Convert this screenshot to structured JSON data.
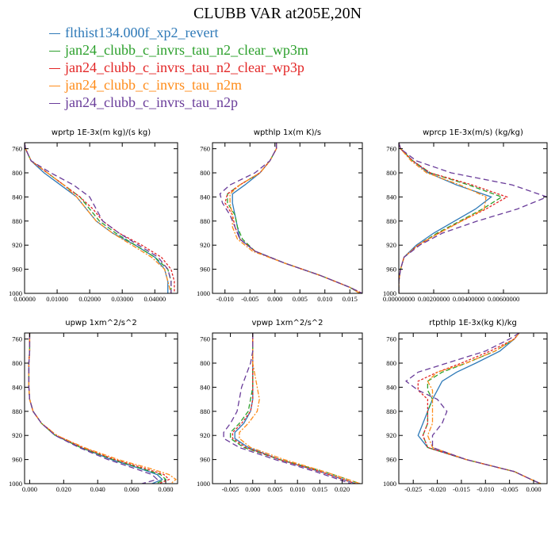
{
  "title": "CLUBB VAR at205E,20N",
  "colors": {
    "blue": "#2f7ab8",
    "green": "#2ca02c",
    "red": "#e32626",
    "orange": "#ff8c1a",
    "purple": "#6a3d9a"
  },
  "legend": [
    {
      "label": "flthist134.000f_xp2_revert",
      "color": "#2f7ab8"
    },
    {
      "label": "jan24_clubb_c_invrs_tau_n2_clear_wp3m",
      "color": "#2ca02c"
    },
    {
      "label": "jan24_clubb_c_invrs_tau_n2_clear_wp3p",
      "color": "#e32626"
    },
    {
      "label": "jan24_clubb_c_invrs_tau_n2m",
      "color": "#ff8c1a"
    },
    {
      "label": "jan24_clubb_c_invrs_tau_n2p",
      "color": "#6a3d9a"
    }
  ],
  "chart_data": [
    {
      "type": "line",
      "title": "wprtp  1E-3x(m kg)/(s kg)",
      "xlim": [
        0,
        0.047
      ],
      "ylim": [
        1000,
        750
      ],
      "xticks": [
        0,
        0.01,
        0.02,
        0.03,
        0.04
      ],
      "xtick_labels": [
        "0.00000",
        "0.01000",
        "0.02000",
        "0.03000",
        "0.04000"
      ],
      "yticks": [
        760,
        800,
        840,
        880,
        920,
        960,
        1000
      ],
      "ytick_labels": [
        "760",
        "800",
        "840",
        "880",
        "920",
        "960",
        "1000"
      ],
      "p": [
        750,
        760,
        780,
        800,
        820,
        840,
        860,
        880,
        900,
        920,
        940,
        960,
        980,
        1000
      ],
      "series": [
        {
          "values": [
            0.0,
            0.0003,
            0.002,
            0.006,
            0.011,
            0.016,
            0.019,
            0.022,
            0.027,
            0.034,
            0.04,
            0.043,
            0.044,
            0.044
          ]
        },
        {
          "values": [
            0.0,
            0.0003,
            0.002,
            0.007,
            0.012,
            0.017,
            0.02,
            0.023,
            0.028,
            0.034,
            0.04,
            0.044,
            0.045,
            0.045
          ]
        },
        {
          "values": [
            0.0,
            0.0003,
            0.002,
            0.007,
            0.012,
            0.017,
            0.021,
            0.024,
            0.029,
            0.036,
            0.042,
            0.045,
            0.046,
            0.046
          ]
        },
        {
          "values": [
            0.0,
            0.0003,
            0.002,
            0.007,
            0.012,
            0.016,
            0.019,
            0.022,
            0.027,
            0.033,
            0.039,
            0.043,
            0.044,
            0.045
          ]
        },
        {
          "values": [
            0.0,
            0.0003,
            0.002,
            0.008,
            0.015,
            0.02,
            0.022,
            0.024,
            0.029,
            0.035,
            0.041,
            0.044,
            0.045,
            0.045
          ]
        }
      ]
    },
    {
      "type": "line",
      "title": "wpthlp  1x(m K)/s",
      "xlim": [
        -0.0125,
        0.0175
      ],
      "ylim": [
        1000,
        750
      ],
      "xticks": [
        -0.01,
        -0.005,
        0,
        0.005,
        0.01,
        0.015
      ],
      "xtick_labels": [
        "-0.010",
        "-0.005",
        "0.000",
        "0.005",
        "0.010",
        "0.015"
      ],
      "yticks": [
        760,
        800,
        840,
        880,
        920,
        960,
        1000
      ],
      "ytick_labels": [
        "760",
        "800",
        "840",
        "880",
        "920",
        "960",
        "1000"
      ],
      "p": [
        750,
        760,
        780,
        800,
        820,
        835,
        850,
        870,
        890,
        910,
        930,
        950,
        970,
        990,
        1000
      ],
      "series": [
        {
          "values": [
            0.0003,
            0.0003,
            -0.001,
            -0.003,
            -0.006,
            -0.0085,
            -0.0085,
            -0.008,
            -0.0075,
            -0.007,
            -0.004,
            0.002,
            0.009,
            0.015,
            0.017
          ]
        },
        {
          "values": [
            0.0003,
            0.0003,
            -0.001,
            -0.003,
            -0.007,
            -0.0095,
            -0.0095,
            -0.008,
            -0.0075,
            -0.0065,
            -0.004,
            0.002,
            0.009,
            0.015,
            0.017
          ]
        },
        {
          "values": [
            0.0003,
            0.0003,
            -0.001,
            -0.003,
            -0.007,
            -0.0095,
            -0.01,
            -0.0085,
            -0.008,
            -0.007,
            -0.004,
            0.002,
            0.009,
            0.015,
            0.0175
          ]
        },
        {
          "values": [
            0.0003,
            0.0003,
            -0.001,
            -0.003,
            -0.007,
            -0.009,
            -0.009,
            -0.0085,
            -0.0085,
            -0.0075,
            -0.0045,
            0.002,
            0.009,
            0.015,
            0.017
          ]
        },
        {
          "values": [
            0.0003,
            0.0003,
            -0.001,
            -0.004,
            -0.009,
            -0.011,
            -0.0105,
            -0.009,
            -0.008,
            -0.007,
            -0.004,
            0.002,
            0.009,
            0.015,
            0.0175
          ]
        }
      ]
    },
    {
      "type": "line",
      "title": "wprcp  1E-3x(m/s) (kg/kg)",
      "xlim": [
        0,
        0.0085
      ],
      "ylim": [
        1000,
        750
      ],
      "xticks": [
        0,
        0.002,
        0.004,
        0.006
      ],
      "xtick_labels": [
        "0.00000000",
        "0.00200000",
        "0.00400000",
        "0.00600000"
      ],
      "yticks": [
        760,
        800,
        840,
        880,
        920,
        960,
        1000
      ],
      "ytick_labels": [
        "760",
        "800",
        "840",
        "880",
        "920",
        "960",
        "1000"
      ],
      "p": [
        750,
        760,
        780,
        800,
        820,
        840,
        860,
        880,
        900,
        920,
        940,
        960,
        980,
        1000
      ],
      "series": [
        {
          "values": [
            0.0,
            0.0001,
            0.0008,
            0.0017,
            0.0033,
            0.0053,
            0.0044,
            0.0032,
            0.002,
            0.001,
            0.0003,
            0.0001,
            0.0,
            0.0
          ]
        },
        {
          "values": [
            0.0,
            0.0001,
            0.0008,
            0.0018,
            0.004,
            0.0059,
            0.0048,
            0.0035,
            0.0022,
            0.0011,
            0.0003,
            0.0001,
            0.0,
            0.0
          ]
        },
        {
          "values": [
            0.0,
            0.0001,
            0.0008,
            0.0018,
            0.0042,
            0.0062,
            0.005,
            0.0036,
            0.0023,
            0.0011,
            0.0003,
            0.0001,
            0.0,
            0.0
          ]
        },
        {
          "values": [
            0.0,
            0.0001,
            0.0007,
            0.0016,
            0.0035,
            0.005,
            0.0049,
            0.0036,
            0.0023,
            0.0011,
            0.0003,
            0.0001,
            0.0,
            0.0
          ]
        },
        {
          "values": [
            0.0,
            0.0001,
            0.001,
            0.003,
            0.0065,
            0.0085,
            0.0068,
            0.0045,
            0.0025,
            0.0012,
            0.0003,
            0.0001,
            0.0,
            0.0
          ]
        }
      ]
    },
    {
      "type": "line",
      "title": "upwp  1xm^2/s^2",
      "xlim": [
        -0.003,
        0.087
      ],
      "ylim": [
        1000,
        750
      ],
      "xticks": [
        0,
        0.02,
        0.04,
        0.06,
        0.08
      ],
      "xtick_labels": [
        "0.000",
        "0.020",
        "0.040",
        "0.060",
        "0.080"
      ],
      "yticks": [
        760,
        800,
        840,
        880,
        920,
        960,
        1000
      ],
      "ytick_labels": [
        "760",
        "800",
        "840",
        "880",
        "920",
        "960",
        "1000"
      ],
      "p": [
        750,
        760,
        780,
        800,
        820,
        840,
        860,
        880,
        900,
        920,
        940,
        960,
        975,
        985,
        993,
        1000
      ],
      "series": [
        {
          "values": [
            0.0,
            0.0,
            0.0,
            -0.0005,
            -0.0005,
            -0.0005,
            0.0,
            0.002,
            0.007,
            0.015,
            0.03,
            0.048,
            0.065,
            0.075,
            0.078,
            0.072
          ]
        },
        {
          "values": [
            0.0,
            0.0,
            0.0,
            -0.0005,
            -0.0005,
            -0.0005,
            0.0,
            0.002,
            0.007,
            0.015,
            0.03,
            0.049,
            0.066,
            0.077,
            0.08,
            0.074
          ]
        },
        {
          "values": [
            0.0,
            0.0,
            0.0,
            -0.0005,
            -0.0005,
            -0.0005,
            0.0,
            0.002,
            0.007,
            0.016,
            0.031,
            0.05,
            0.068,
            0.079,
            0.082,
            0.076
          ]
        },
        {
          "values": [
            0.0,
            0.0,
            0.0,
            -0.0005,
            -0.0005,
            -0.0005,
            0.0,
            0.002,
            0.007,
            0.016,
            0.032,
            0.052,
            0.071,
            0.082,
            0.086,
            0.083
          ]
        },
        {
          "values": [
            0.0,
            0.0,
            0.0,
            -0.0005,
            -0.0005,
            -0.0005,
            0.0,
            0.002,
            0.007,
            0.015,
            0.029,
            0.046,
            0.062,
            0.072,
            0.075,
            0.066
          ]
        }
      ]
    },
    {
      "type": "line",
      "title": "vpwp  1xm^2/s^2",
      "xlim": [
        -0.009,
        0.0245
      ],
      "ylim": [
        1000,
        750
      ],
      "xticks": [
        -0.005,
        0,
        0.005,
        0.01,
        0.015,
        0.02
      ],
      "xtick_labels": [
        "-0.005",
        "0.000",
        "0.005",
        "0.010",
        "0.015",
        "0.020"
      ],
      "yticks": [
        760,
        800,
        840,
        880,
        920,
        960,
        1000
      ],
      "ytick_labels": [
        "760",
        "800",
        "840",
        "880",
        "920",
        "960",
        "1000"
      ],
      "p": [
        750,
        760,
        780,
        800,
        820,
        840,
        860,
        880,
        900,
        915,
        925,
        940,
        960,
        980,
        995,
        1000
      ],
      "series": [
        {
          "values": [
            0.0,
            0.0,
            0.0,
            0.0,
            0.0,
            0.0,
            0.0,
            -0.0005,
            -0.002,
            -0.004,
            -0.004,
            -0.001,
            0.006,
            0.015,
            0.021,
            0.023
          ]
        },
        {
          "values": [
            0.0,
            0.0,
            0.0,
            0.0,
            0.0,
            0.0,
            -0.0005,
            -0.001,
            -0.003,
            -0.005,
            -0.005,
            -0.002,
            0.006,
            0.016,
            0.022,
            0.024
          ]
        },
        {
          "values": [
            0.0,
            0.0,
            0.0,
            0.0,
            0.0,
            0.0,
            0.0,
            -0.0005,
            -0.0025,
            -0.0045,
            -0.0045,
            -0.0015,
            0.006,
            0.015,
            0.021,
            0.023
          ]
        },
        {
          "values": [
            0.0,
            0.0,
            0.0,
            0.0,
            0.0005,
            0.001,
            0.0015,
            0.001,
            -0.001,
            -0.003,
            -0.003,
            -0.0005,
            0.007,
            0.016,
            0.022,
            0.024
          ]
        },
        {
          "values": [
            0.0,
            0.0,
            0.0,
            -0.0005,
            -0.0015,
            -0.0025,
            -0.003,
            -0.0035,
            -0.005,
            -0.0065,
            -0.0065,
            -0.003,
            0.005,
            0.014,
            0.02,
            0.022
          ]
        }
      ]
    },
    {
      "type": "line",
      "title": "rtpthlp  1E-3x(kg K)/kg",
      "xlim": [
        -0.028,
        0.0028
      ],
      "ylim": [
        1000,
        750
      ],
      "xticks": [
        -0.025,
        -0.02,
        -0.015,
        -0.01,
        -0.005,
        0
      ],
      "xtick_labels": [
        "-0.025",
        "-0.020",
        "-0.015",
        "-0.010",
        "-0.005",
        "0.000"
      ],
      "yticks": [
        760,
        800,
        840,
        880,
        920,
        960,
        1000
      ],
      "ytick_labels": [
        "760",
        "800",
        "840",
        "880",
        "920",
        "960",
        "1000"
      ],
      "p": [
        750,
        760,
        780,
        800,
        815,
        830,
        845,
        860,
        880,
        900,
        920,
        940,
        960,
        980,
        995,
        1000
      ],
      "series": [
        {
          "values": [
            -0.003,
            -0.004,
            -0.007,
            -0.012,
            -0.016,
            -0.019,
            -0.02,
            -0.021,
            -0.022,
            -0.023,
            -0.024,
            -0.022,
            -0.014,
            -0.004,
            0.0,
            0.0015
          ]
        },
        {
          "values": [
            -0.003,
            -0.004,
            -0.008,
            -0.014,
            -0.019,
            -0.022,
            -0.022,
            -0.021,
            -0.022,
            -0.022,
            -0.023,
            -0.022,
            -0.014,
            -0.004,
            0.0,
            0.0015
          ]
        },
        {
          "values": [
            -0.003,
            -0.004,
            -0.009,
            -0.015,
            -0.02,
            -0.024,
            -0.024,
            -0.022,
            -0.022,
            -0.022,
            -0.023,
            -0.022,
            -0.014,
            -0.004,
            0.0,
            0.0015
          ]
        },
        {
          "values": [
            -0.003,
            -0.004,
            -0.008,
            -0.014,
            -0.02,
            -0.022,
            -0.021,
            -0.021,
            -0.021,
            -0.021,
            -0.022,
            -0.021,
            -0.014,
            -0.004,
            0.0,
            0.0015
          ]
        },
        {
          "values": [
            -0.003,
            -0.005,
            -0.01,
            -0.018,
            -0.024,
            -0.0265,
            -0.024,
            -0.02,
            -0.018,
            -0.019,
            -0.021,
            -0.021,
            -0.014,
            -0.004,
            0.0,
            0.0015
          ]
        }
      ]
    }
  ]
}
